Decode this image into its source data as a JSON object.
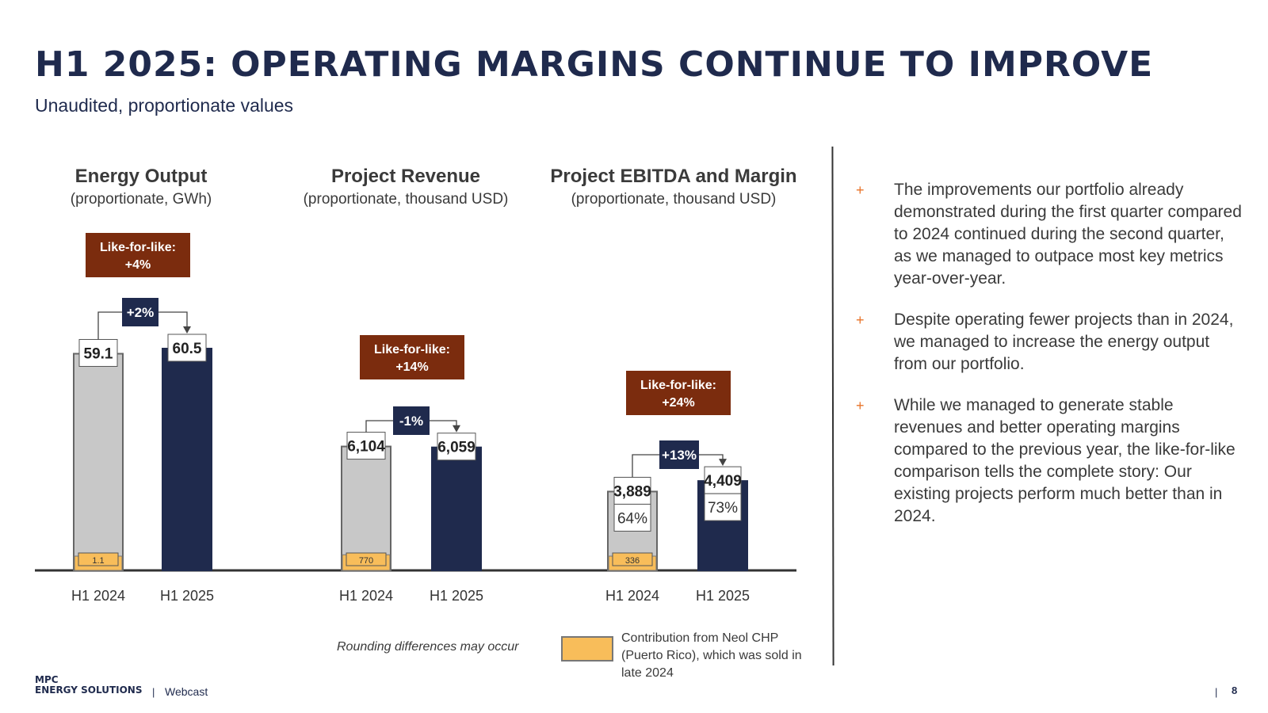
{
  "header": {
    "title": "H1 2025: OPERATING MARGINS CONTINUE TO IMPROVE",
    "subtitle": "Unaudited, proportionate values"
  },
  "colors": {
    "navy": "#1f2a4d",
    "grey_bar": "#c8c8c8",
    "neol": "#f8bd5a",
    "lfl_box": "#7b2c0e",
    "bullet_accent": "#e8742a"
  },
  "chart_data": [
    {
      "type": "bar",
      "title": "Energy Output",
      "subtitle": "(proportionate, GWh)",
      "categories": [
        "H1 2024",
        "H1 2025"
      ],
      "values": [
        59.1,
        60.5
      ],
      "value_labels": [
        "59.1",
        "60.5"
      ],
      "neol_value": 1.1,
      "neol_label": "1.1",
      "change": "+2%",
      "like_for_like": [
        "Like-for-like:",
        "+4%"
      ],
      "ylim": [
        0,
        60.5
      ]
    },
    {
      "type": "bar",
      "title": "Project Revenue",
      "subtitle": "(proportionate, thousand USD)",
      "categories": [
        "H1 2024",
        "H1 2025"
      ],
      "values": [
        6104,
        6059
      ],
      "value_labels": [
        "6,104",
        "6,059"
      ],
      "neol_value": 770,
      "neol_label": "770",
      "change": "-1%",
      "like_for_like": [
        "Like-for-like:",
        "+14%"
      ],
      "ylim": [
        0,
        10926
      ]
    },
    {
      "type": "bar",
      "title": "Project EBITDA and Margin",
      "subtitle": "(proportionate, thousand USD)",
      "categories": [
        "H1 2024",
        "H1 2025"
      ],
      "values": [
        3889,
        4409
      ],
      "value_labels": [
        "3,889",
        "4,409"
      ],
      "margins": [
        "64%",
        "73%"
      ],
      "neol_value": 336,
      "neol_label": "336",
      "change": "+13%",
      "like_for_like": [
        "Like-for-like:",
        "+24%"
      ],
      "ylim": [
        0,
        10939
      ]
    }
  ],
  "bullets": [
    "The improvements our portfolio already demonstrated during the first quarter compared to 2024 continued during the second quarter, as we managed to outpace most key metrics year-over-year.",
    "Despite operating fewer projects than in 2024, we managed to increase the energy output from our portfolio.",
    "While we managed to generate stable revenues and better operating margins compared to the previous year, the like-for-like comparison tells the complete story: Our existing projects perform much better than in 2024."
  ],
  "bullet_marker": "+",
  "footnote": "Rounding differences may occur",
  "legend": {
    "label": "Contribution from Neol CHP (Puerto Rico), which was sold in late 2024"
  },
  "footer": {
    "logo_line1": "MPC",
    "logo_line2": "ENERGY SOLUTIONS",
    "separator": "|",
    "label": "Webcast",
    "page": "8"
  }
}
